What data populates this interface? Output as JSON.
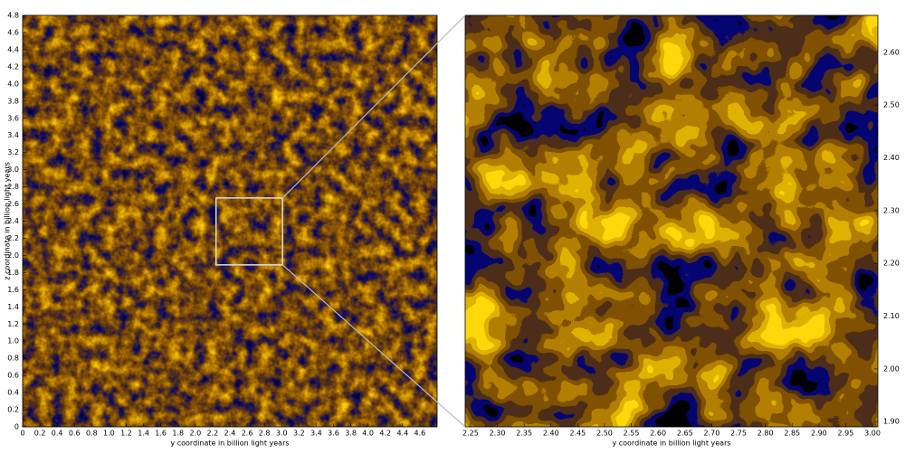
{
  "chart_data": [
    {
      "type": "density-map",
      "x_label": "y coordinate in billion light years",
      "y_label": "z coordinate in billion light years",
      "xlim": [
        0,
        4.8
      ],
      "ylim": [
        0,
        4.8
      ],
      "xticks": [
        0,
        0.2,
        0.4,
        0.6,
        0.8,
        {
          "value": 1,
          "label": "1.0"
        },
        1.2,
        1.4,
        1.6,
        1.8,
        {
          "value": 2,
          "label": "2.0"
        },
        2.2,
        2.4,
        2.6,
        2.8,
        {
          "value": 3,
          "label": "3.0"
        },
        3.2,
        3.4,
        3.6,
        3.8,
        {
          "value": 4,
          "label": "4.0"
        },
        4.2,
        4.4,
        4.6
      ],
      "yticks": [
        0,
        0.2,
        0.4,
        0.6,
        0.8,
        {
          "value": 1,
          "label": "1.0"
        },
        1.2,
        1.4,
        1.6,
        1.8,
        {
          "value": 2,
          "label": "2.0"
        },
        2.2,
        2.4,
        2.6,
        2.8,
        {
          "value": 3,
          "label": "3.0"
        },
        3.2,
        3.4,
        3.6,
        3.8,
        {
          "value": 4,
          "label": "4.0"
        },
        4.2,
        4.4,
        4.6,
        4.8
      ],
      "yaxis_side": "left"
    },
    {
      "type": "density-map",
      "x_label": "y coordinate in billion light years",
      "xlim": [
        2.24,
        3.01
      ],
      "ylim": [
        1.89,
        2.67
      ],
      "xticks": [
        2.25,
        {
          "value": 2.3,
          "label": "2.30"
        },
        2.35,
        {
          "value": 2.4,
          "label": "2.40"
        },
        2.45,
        {
          "value": 2.5,
          "label": "2.50"
        },
        2.55,
        {
          "value": 2.6,
          "label": "2.60"
        },
        2.65,
        {
          "value": 2.7,
          "label": "2.70"
        },
        2.75,
        {
          "value": 2.8,
          "label": "2.80"
        },
        2.85,
        {
          "value": 2.9,
          "label": "2.90"
        },
        2.95,
        {
          "value": 3,
          "label": "3.00"
        }
      ],
      "yticks": [
        {
          "value": 1.9,
          "label": "1.90"
        },
        {
          "value": 2,
          "label": "2.00"
        },
        {
          "value": 2.1,
          "label": "2.10"
        },
        {
          "value": 2.2,
          "label": "2.20"
        },
        {
          "value": 2.3,
          "label": "2.30"
        },
        {
          "value": 2.4,
          "label": "2.40"
        },
        {
          "value": 2.5,
          "label": "2.50"
        },
        {
          "value": 2.6,
          "label": "2.60"
        }
      ],
      "yaxis_side": "right"
    }
  ]
}
